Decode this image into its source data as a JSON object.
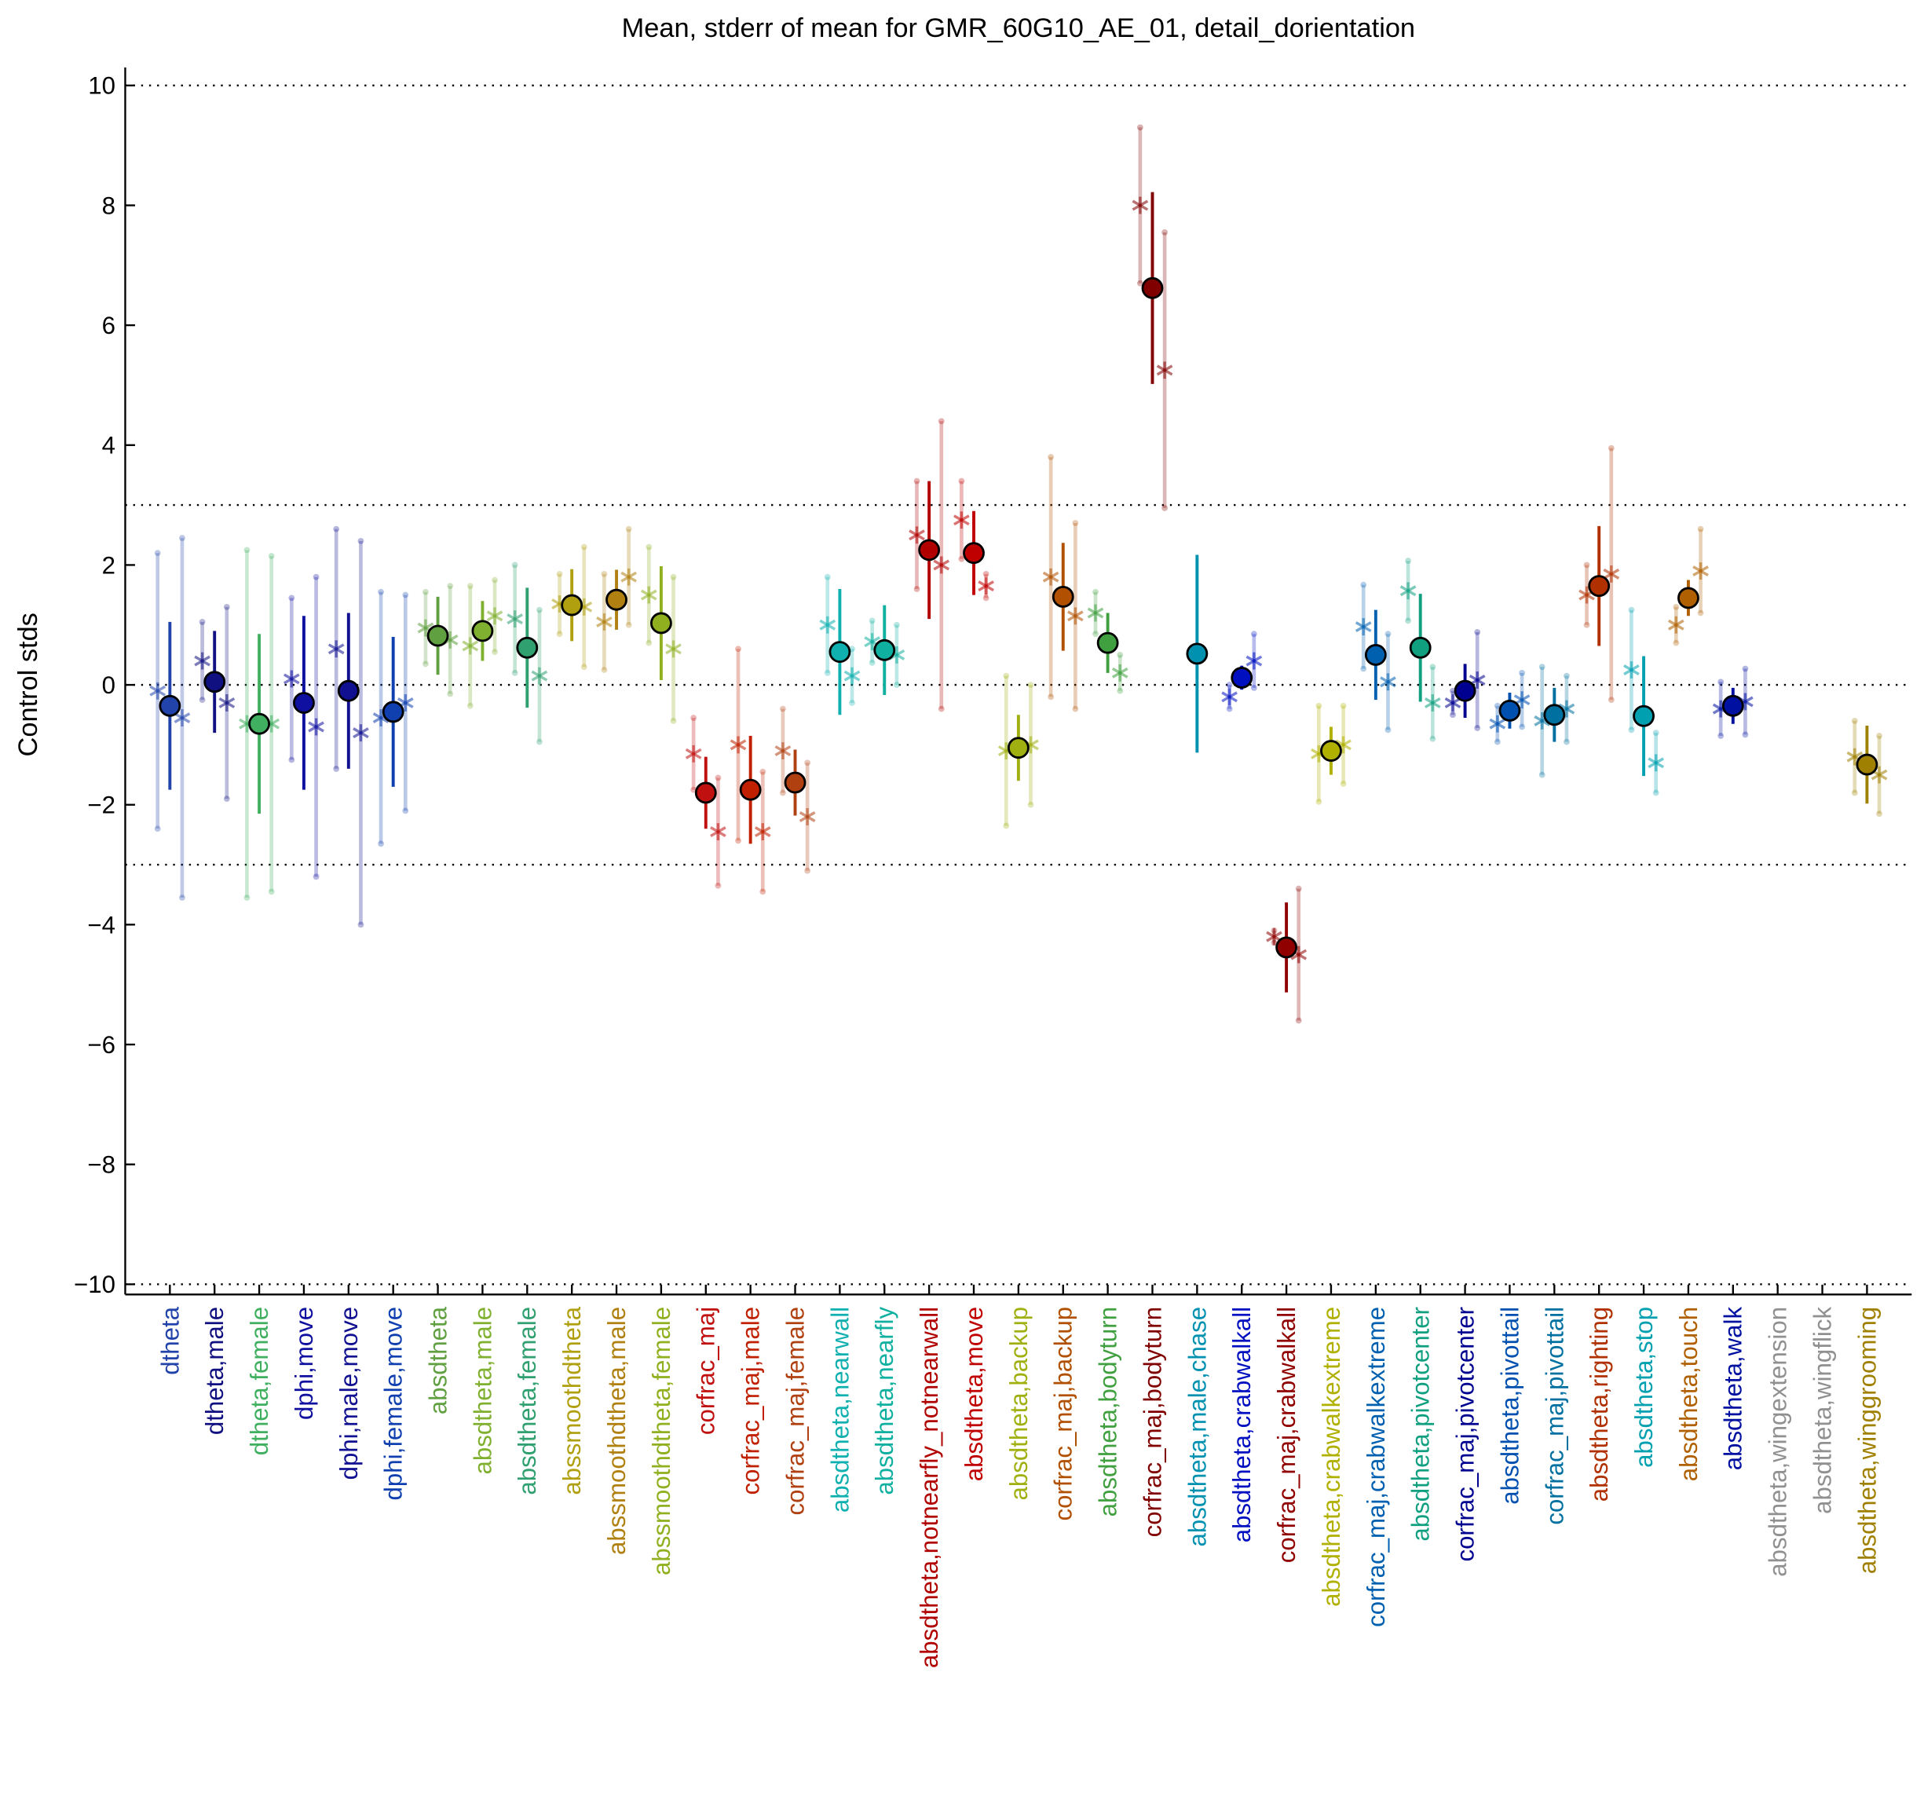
{
  "chart_data": {
    "type": "errorbar",
    "title": "Mean, stderr of mean for GMR_60G10_AE_01, detail_dorientation",
    "ylabel": "Control stds",
    "ylim": [
      -10.17,
      10.3
    ],
    "yticks": [
      {
        "value": -10,
        "label": "−10"
      },
      {
        "value": -8,
        "label": "−8"
      },
      {
        "value": -6,
        "label": "−6"
      },
      {
        "value": -4,
        "label": "−4"
      },
      {
        "value": -2,
        "label": "−2"
      },
      0,
      2,
      4,
      6,
      8,
      10
    ],
    "hlines": [
      10,
      3,
      0,
      -3,
      -10
    ],
    "categories": [
      "dtheta",
      "dtheta,male",
      "dtheta,female",
      "dphi,move",
      "dphi,male,move",
      "dphi,female,move",
      "absdtheta",
      "absdtheta,male",
      "absdtheta,female",
      "abssmoothdtheta",
      "abssmoothdtheta,male",
      "abssmoothdtheta,female",
      "corfrac_maj",
      "corfrac_maj,male",
      "corfrac_maj,female",
      "absdtheta,nearwall",
      "absdtheta,nearfly",
      "absdtheta,notnearfly_notnearwall",
      "absdtheta,move",
      "absdtheta,backup",
      "corfrac_maj,backup",
      "absdtheta,bodyturn",
      "corfrac_maj,bodyturn",
      "absdtheta,male,chase",
      "absdtheta,crabwalkall",
      "corfrac_maj,crabwalkall",
      "absdtheta,crabwalkextreme",
      "corfrac_maj,crabwalkextreme",
      "absdtheta,pivotcenter",
      "corfrac_maj,pivotcenter",
      "absdtheta,pivottail",
      "corfrac_maj,pivottail",
      "absdtheta,righting",
      "absdtheta,stop",
      "absdtheta,touch",
      "absdtheta,walk",
      "absdtheta,wingextension",
      "absdtheta,wingflick",
      "absdtheta,winggrooming"
    ],
    "category_colors": [
      "#2244aa",
      "#101080",
      "#40b060",
      "#1010a0",
      "#101090",
      "#1040b0",
      "#60a040",
      "#80b030",
      "#30a070",
      "#b0a010",
      "#b08010",
      "#90b020",
      "#c01010",
      "#c02000",
      "#b04010",
      "#10b0b0",
      "#10b0a0",
      "#b00000",
      "#c00000",
      "#a0b010",
      "#b05000",
      "#40a040",
      "#800000",
      "#0090b0",
      "#0010c0",
      "#900000",
      "#b0b000",
      "#0060b0",
      "#10a080",
      "#000090",
      "#0050b0",
      "#0070a0",
      "#b03000",
      "#00a0b0",
      "#b06000",
      "#0010a0",
      "#909090",
      "#909090",
      "#a08000"
    ],
    "series": [
      {
        "marker": "circle",
        "values": [
          -0.35,
          0.05,
          -0.65,
          -0.3,
          -0.1,
          -0.45,
          0.82,
          0.9,
          0.62,
          1.33,
          1.42,
          1.03,
          -1.8,
          -1.75,
          -1.63,
          0.55,
          0.58,
          2.25,
          2.2,
          -1.05,
          1.47,
          0.7,
          6.62,
          0.52,
          0.12,
          -4.38,
          -1.1,
          0.5,
          0.62,
          -0.1,
          -0.43,
          -0.5,
          1.65,
          -0.52,
          1.45,
          -0.35,
          null,
          null,
          -1.33
        ],
        "errors": [
          1.4,
          0.85,
          1.5,
          1.45,
          1.3,
          1.25,
          0.65,
          0.5,
          1.0,
          0.6,
          0.5,
          0.95,
          0.6,
          0.9,
          0.55,
          1.05,
          0.75,
          1.15,
          0.7,
          0.55,
          0.9,
          0.5,
          1.6,
          1.65,
          0.2,
          0.75,
          0.4,
          0.75,
          0.9,
          0.45,
          0.3,
          0.45,
          1.0,
          1.0,
          0.3,
          0.3,
          null,
          null,
          0.65
        ]
      },
      {
        "marker": "star",
        "values": [
          -0.1,
          0.4,
          -0.65,
          0.1,
          0.6,
          -0.55,
          0.95,
          0.65,
          1.1,
          1.35,
          1.05,
          1.5,
          -1.15,
          -1.0,
          -1.1,
          1.0,
          0.72,
          2.5,
          2.75,
          -1.1,
          1.8,
          1.2,
          8.0,
          null,
          -0.2,
          -4.2,
          -1.15,
          0.97,
          1.57,
          -0.3,
          -0.65,
          -0.6,
          1.5,
          0.25,
          1.0,
          -0.4,
          null,
          null,
          -1.2
        ],
        "errors": [
          2.3,
          0.65,
          2.9,
          1.35,
          2.0,
          2.1,
          0.6,
          1.0,
          0.9,
          0.5,
          0.8,
          0.8,
          0.6,
          1.6,
          0.7,
          0.8,
          0.35,
          0.9,
          0.65,
          1.25,
          2.0,
          0.35,
          1.3,
          null,
          0.2,
          0.1,
          0.8,
          0.7,
          0.5,
          0.2,
          0.3,
          0.9,
          0.5,
          1.0,
          0.3,
          0.45,
          null,
          null,
          0.6
        ]
      },
      {
        "marker": "star",
        "values": [
          -0.55,
          -0.3,
          -0.65,
          -0.7,
          -0.8,
          -0.3,
          0.75,
          1.15,
          0.15,
          1.3,
          1.8,
          0.6,
          -2.45,
          -2.45,
          -2.2,
          0.15,
          0.5,
          2.0,
          1.65,
          -1.0,
          1.15,
          0.2,
          5.25,
          null,
          0.4,
          -4.5,
          -1.0,
          0.05,
          -0.3,
          0.08,
          -0.25,
          -0.4,
          1.85,
          -1.3,
          1.9,
          -0.28,
          null,
          null,
          -1.5
        ],
        "errors": [
          3.0,
          1.6,
          2.8,
          2.5,
          3.2,
          1.8,
          0.9,
          0.6,
          1.1,
          1.0,
          0.8,
          1.2,
          0.9,
          1.0,
          0.9,
          0.45,
          0.5,
          2.4,
          0.2,
          1.0,
          1.55,
          0.3,
          2.3,
          null,
          0.45,
          1.1,
          0.65,
          0.8,
          0.6,
          0.8,
          0.45,
          0.55,
          2.1,
          0.5,
          0.7,
          0.55,
          null,
          null,
          0.65
        ]
      }
    ]
  }
}
